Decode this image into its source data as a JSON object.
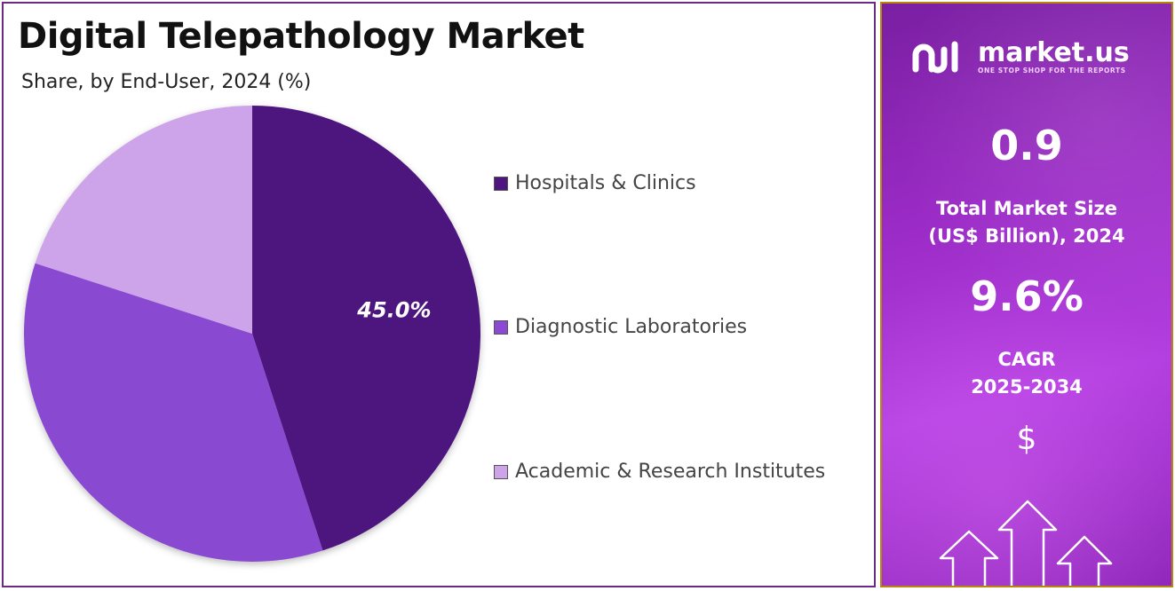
{
  "left": {
    "title": "Digital Telepathology Market",
    "subtitle": "Share, by End-User, 2024 (%)"
  },
  "chart_data": {
    "type": "pie",
    "title": "Digital Telepathology Market",
    "subtitle": "Share, by End-User, 2024 (%)",
    "categories": [
      "Hospitals & Clinics",
      "Diagnostic Laboratories",
      "Academic & Research Institutes"
    ],
    "values": [
      45.0,
      35.0,
      20.0
    ],
    "colors": [
      "#4e157e",
      "#8a4ad1",
      "#cda3ea"
    ],
    "data_labels": [
      "45.0%",
      "",
      ""
    ],
    "legend_position": "right"
  },
  "right": {
    "logo_name": "market.us",
    "logo_tagline": "ONE STOP SHOP FOR THE REPORTS",
    "market_size_value": "0.9",
    "market_size_label_line1": "Total Market Size",
    "market_size_label_line2": "(US$ Billion), 2024",
    "cagr_value": "9.6%",
    "cagr_label_line1": "CAGR",
    "cagr_label_line2": "2025-2034",
    "dollar_symbol": "$",
    "icons": [
      "logo-icon",
      "dollar-icon",
      "growth-arrows-icon"
    ],
    "background_color": "#9b2bc6",
    "border_color": "#b8860b"
  }
}
